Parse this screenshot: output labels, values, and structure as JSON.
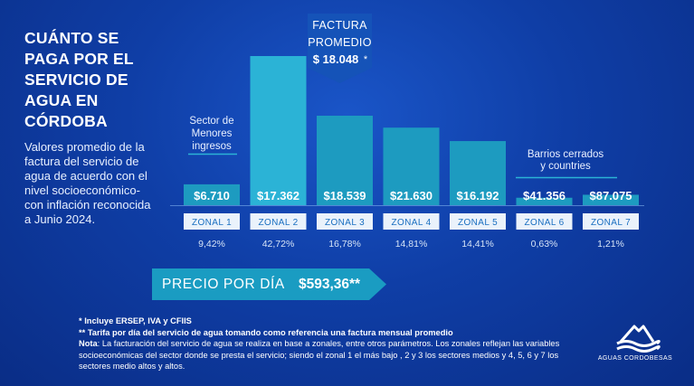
{
  "title": "CUÁNTO SE PAGA POR EL SERVICIO DE AGUA EN CÓRDOBA",
  "description": "Valores promedio de la factura del servicio de agua de acuerdo con el nivel socioeconómico-con inflación reconocida a Junio 2024.",
  "average_callout": {
    "line1": "FACTURA",
    "line2": "PROMEDIO",
    "value": "$ 18.048",
    "mark": "*"
  },
  "annotation_low": {
    "line1": "Sector de",
    "line2": "Menores",
    "line3": "ingresos"
  },
  "annotation_high": {
    "line1": "Barrios cerrados",
    "line2": "y countries"
  },
  "chart_data": {
    "type": "bar",
    "categories": [
      "ZONAL 1",
      "ZONAL 2",
      "ZONAL 3",
      "ZONAL 4",
      "ZONAL 5",
      "ZONAL 6",
      "ZONAL 7"
    ],
    "values": [
      6710,
      17362,
      18539,
      21630,
      16192,
      41356,
      87075
    ],
    "value_labels": [
      "$6.710",
      "$17.362",
      "$18.539",
      "$21.630",
      "$16.192",
      "$41.356",
      "$87.075"
    ],
    "bar_heights_relative": [
      0.14,
      1.0,
      0.6,
      0.52,
      0.43,
      0.05,
      0.07
    ],
    "shares": [
      "9,42%",
      "42,72%",
      "16,78%",
      "14,81%",
      "14,41%",
      "0,63%",
      "1,21%"
    ],
    "bar_color": "#1d9bc0",
    "highlight_color": "#2bb3d6"
  },
  "price_per_day": {
    "label": "PRECIO POR DÍA",
    "value": "$593,36**"
  },
  "notes": {
    "n1": "* Incluye ERSEP, IVA y CFIIS",
    "n2": "** Tarifa por día del servicio de agua tomando como referencia una factura mensual promedio",
    "n3_label": "Nota",
    "n3_text": ": La facturación del servicio de agua se realiza en base a zonales, entre otros parámetros. Los zonales reflejan las variables socioeconómicas del sector donde se presta el servicio; siendo el zonal 1 el más bajo , 2 y 3 los sectores medios y 4, 5, 6 y 7 los sectores medio altos y altos."
  },
  "logo": {
    "text": "AGUAS CORDOBESAS"
  }
}
